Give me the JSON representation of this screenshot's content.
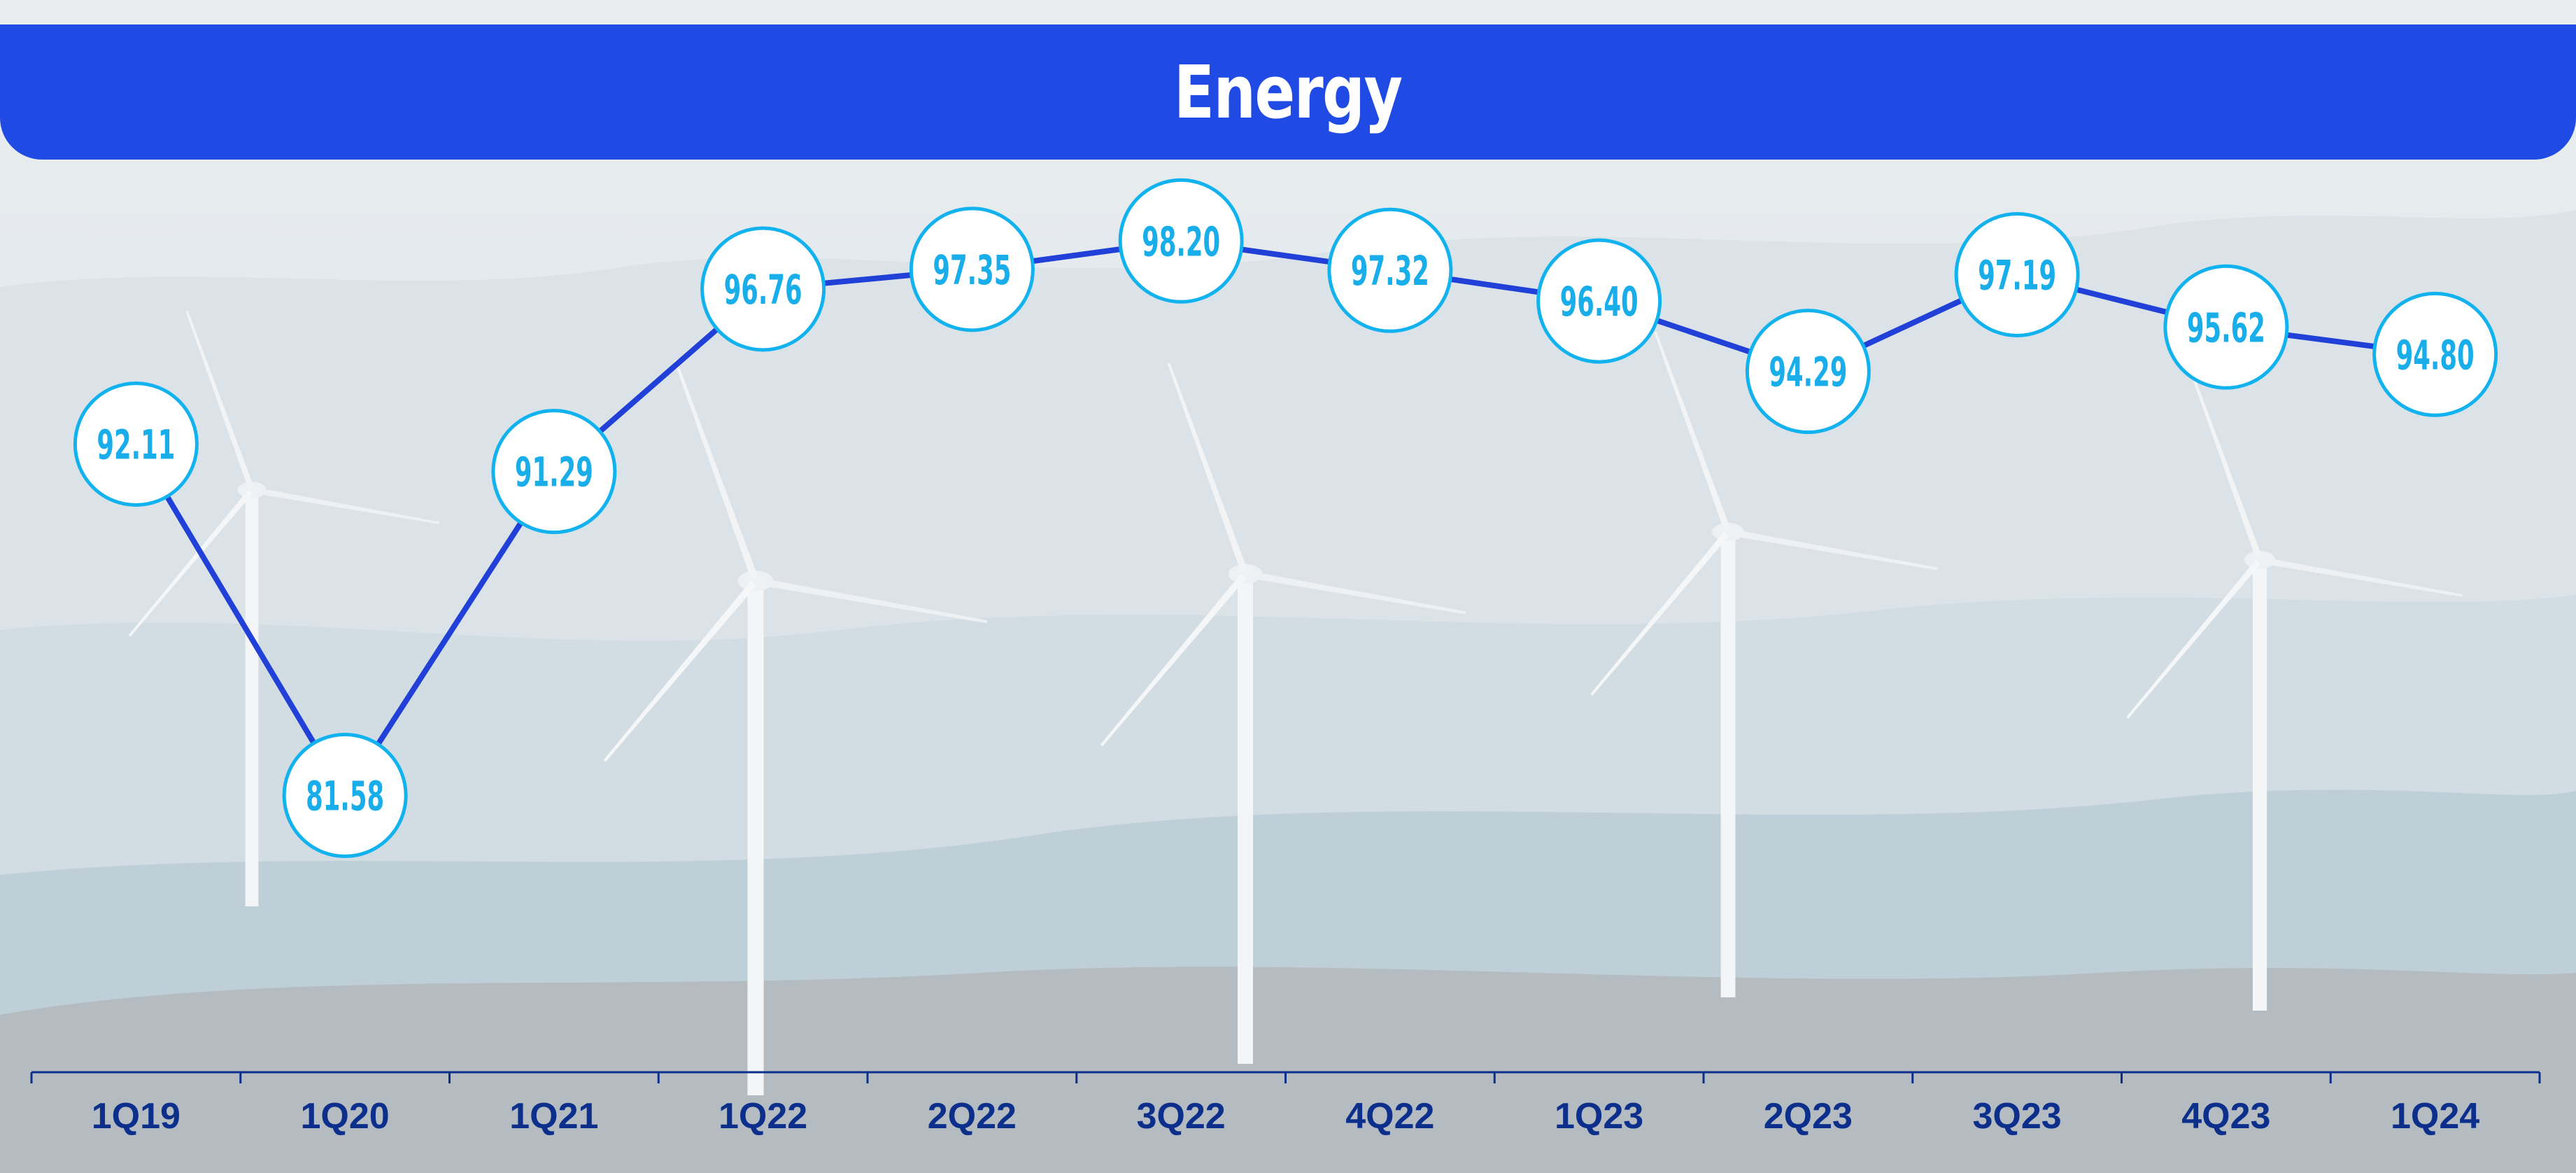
{
  "chart_data": {
    "type": "line",
    "title": "Energy",
    "categories": [
      "1Q19",
      "1Q20",
      "1Q21",
      "1Q22",
      "2Q22",
      "3Q22",
      "4Q22",
      "1Q23",
      "2Q23",
      "3Q23",
      "4Q23",
      "1Q24"
    ],
    "values": [
      92.11,
      81.58,
      91.29,
      96.76,
      97.35,
      98.2,
      97.32,
      96.4,
      94.29,
      97.19,
      95.62,
      94.8
    ],
    "data_labels": [
      "92.11",
      "81.58",
      "91.29",
      "96.76",
      "97.35",
      "98.20",
      "97.32",
      "96.40",
      "94.29",
      "97.19",
      "95.62",
      "94.80"
    ],
    "xlabel": "",
    "ylabel": "",
    "ylim": [
      80.5,
      98.5
    ],
    "grid": false,
    "legend": "none"
  },
  "colors": {
    "header": "#1f4ae3",
    "line": "#2040d8",
    "marker_border": "#12b2ef",
    "label_text": "#19aee9",
    "axis": "#0d2f8c",
    "tick_text": "#0d2f8c"
  }
}
